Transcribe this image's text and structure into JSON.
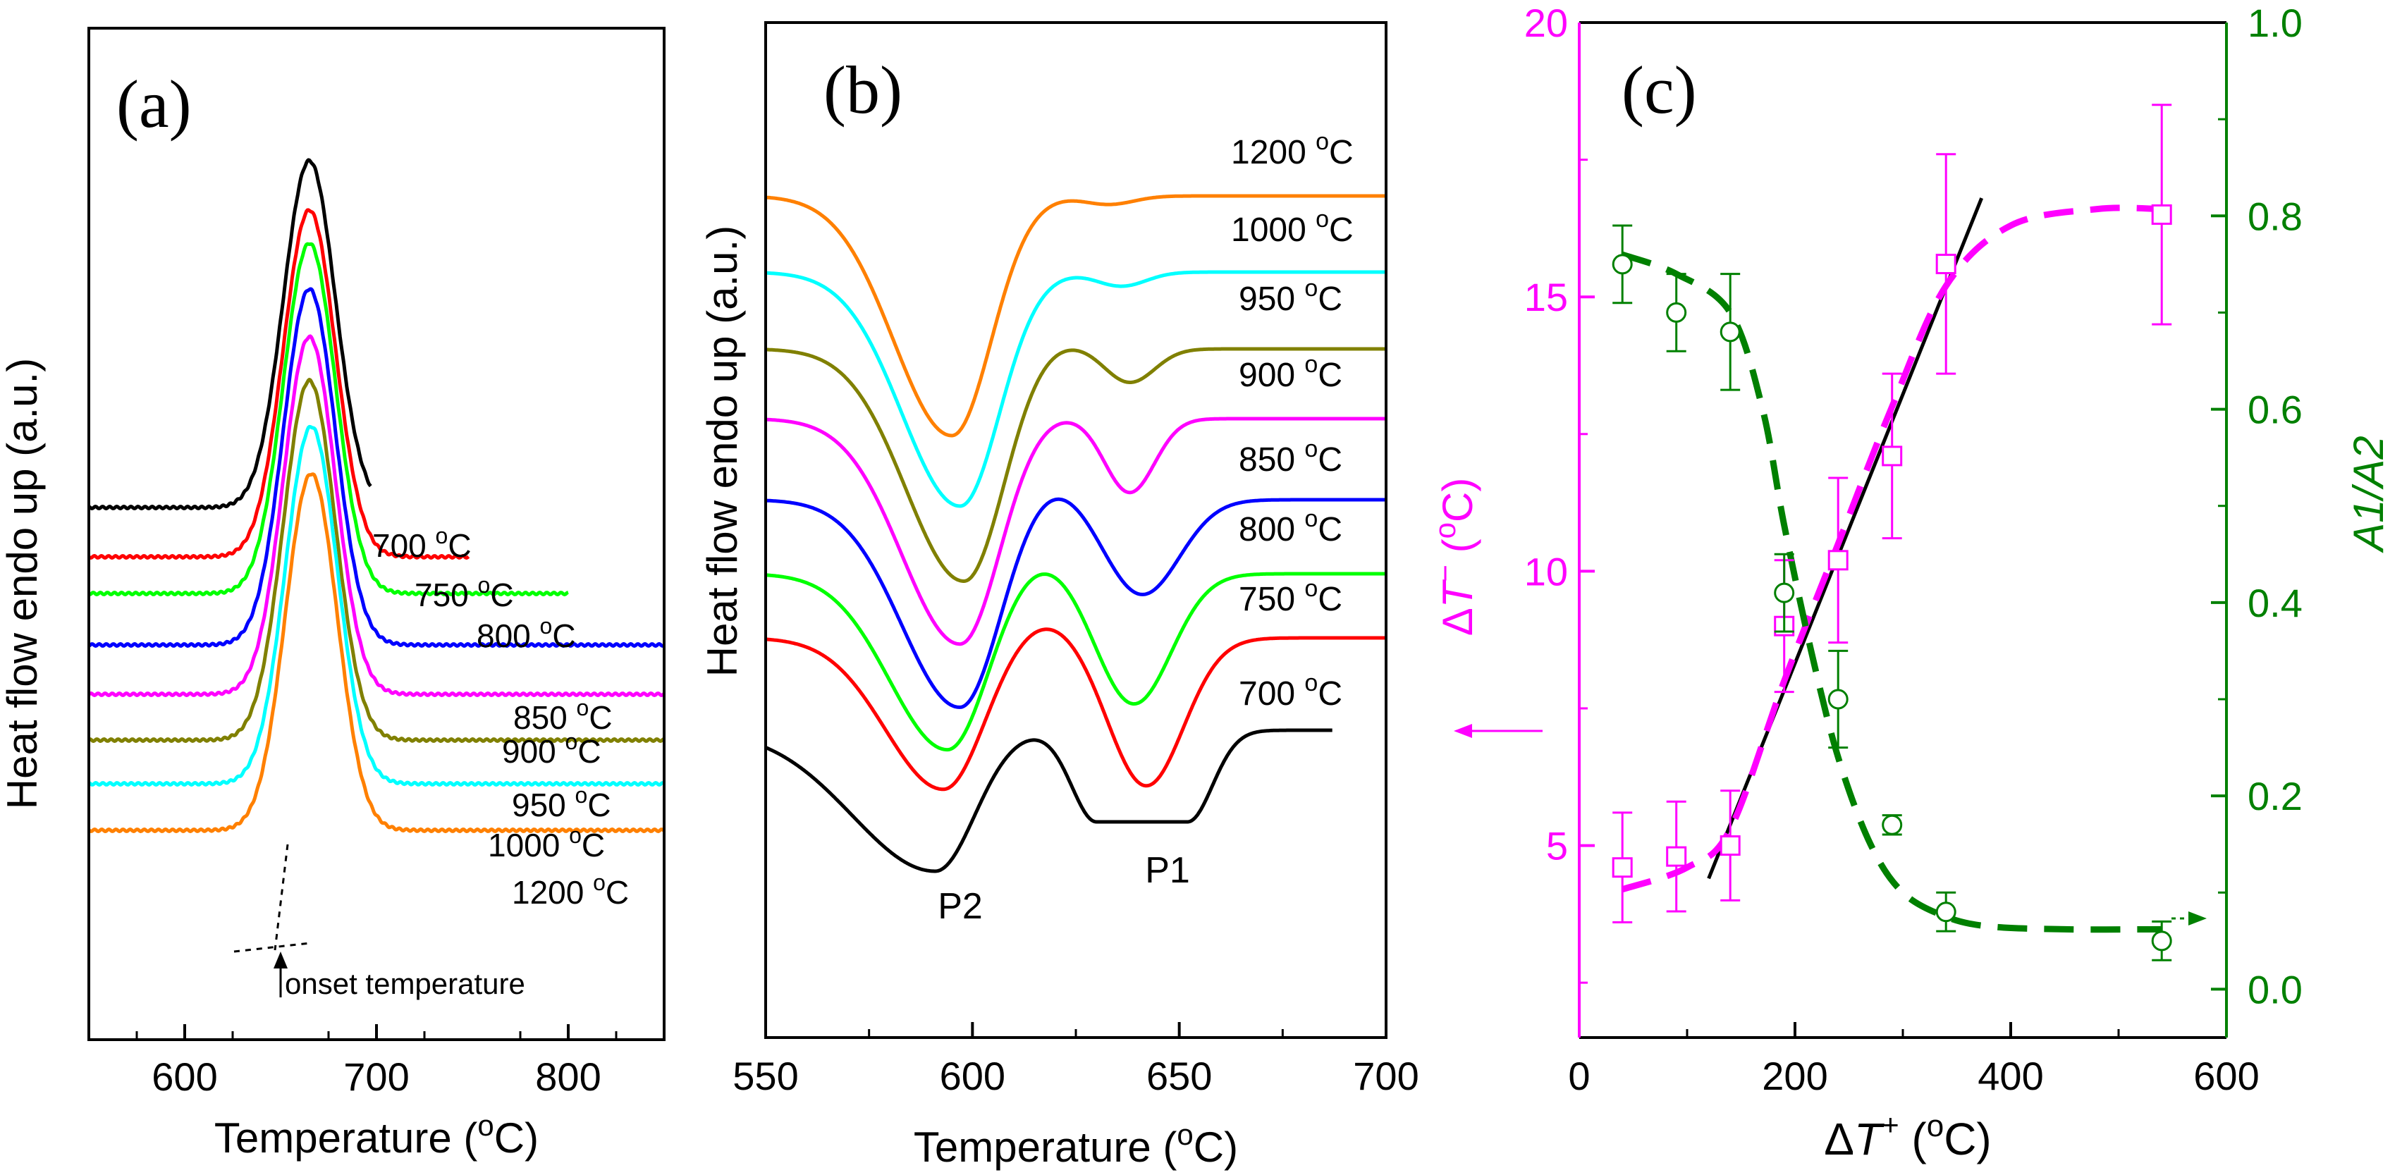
{
  "chart_data": [
    {
      "panel": "a",
      "panel_label": "(a)",
      "type": "line",
      "xlabel": "Temperature (°C)",
      "ylabel": "Heat flow endo up (a.u.)",
      "xlim": [
        550,
        850
      ],
      "xticks": [
        "600",
        "700",
        "800"
      ],
      "yticks_visible": false,
      "annotation": "onset temperature",
      "series": [
        {
          "name": "700 °C",
          "color": "#000000",
          "peak": 665,
          "x_end": 697
        },
        {
          "name": "750 °C",
          "color": "#ff0000",
          "peak": 665,
          "x_end": 748
        },
        {
          "name": "800 °C",
          "color": "#00ff00",
          "peak": 665,
          "x_end": 800
        },
        {
          "name": "850 °C",
          "color": "#0000ff",
          "peak": 665,
          "x_end": 850
        },
        {
          "name": "900 °C",
          "color": "#ff00ff",
          "peak": 665,
          "x_end": 850
        },
        {
          "name": "950 °C",
          "color": "#808000",
          "peak": 665,
          "x_end": 850
        },
        {
          "name": "1000 °C",
          "color": "#00ffff",
          "peak": 666,
          "x_end": 850
        },
        {
          "name": "1200 °C",
          "color": "#ff8000",
          "peak": 666,
          "x_end": 850
        }
      ]
    },
    {
      "panel": "b",
      "panel_label": "(b)",
      "type": "line",
      "xlabel": "Temperature (°C)",
      "ylabel": "Heat flow endo up (a.u.)",
      "xlim": [
        550,
        700
      ],
      "xticks": [
        "550",
        "600",
        "650",
        "700"
      ],
      "yticks_visible": false,
      "peak_labels": [
        "P2",
        "P1"
      ],
      "series": [
        {
          "name": "1200 °C",
          "color": "#ff8000",
          "p2_temp": 595,
          "p1_temp": 633,
          "x_end": 700
        },
        {
          "name": "1000 °C",
          "color": "#00ffff",
          "p2_temp": 597,
          "p1_temp": 636,
          "x_end": 700
        },
        {
          "name": "950 °C",
          "color": "#808000",
          "p2_temp": 598,
          "p1_temp": 638,
          "x_end": 700
        },
        {
          "name": "900 °C",
          "color": "#ff00ff",
          "p2_temp": 597,
          "p1_temp": 638,
          "x_end": 700
        },
        {
          "name": "850 °C",
          "color": "#0000ff",
          "p2_temp": 597,
          "p1_temp": 641,
          "x_end": 700
        },
        {
          "name": "800 °C",
          "color": "#00ff00",
          "p2_temp": 594,
          "p1_temp": 639,
          "x_end": 700
        },
        {
          "name": "750 °C",
          "color": "#ff0000",
          "p2_temp": 593,
          "p1_temp": 642,
          "x_end": 700
        },
        {
          "name": "700 °C",
          "color": "#000000",
          "p2_temp": 591,
          "p1_temp": 637,
          "x_end": 687
        }
      ]
    },
    {
      "panel": "c",
      "panel_label": "(c)",
      "type": "scatter",
      "xlabel": "ΔT+ (°C)",
      "xlim": [
        0,
        600
      ],
      "xticks": [
        "0",
        "200",
        "400",
        "600"
      ],
      "ylabel_left": "ΔT− (°C)",
      "ylim_left": [
        1.5,
        20
      ],
      "yticks_left": [
        "5",
        "10",
        "15",
        "20"
      ],
      "ylabel_right": "A1/A2",
      "ylim_right": [
        -0.05,
        1.0
      ],
      "yticks_right": [
        "0.0",
        "0.2",
        "0.4",
        "0.6",
        "0.8",
        "1.0"
      ],
      "left_color": "#ff00ff",
      "right_color": "#008000",
      "series": [
        {
          "name": "ΔT−",
          "axis": "left",
          "marker": "square",
          "color": "#ff00ff",
          "x": [
            40,
            90,
            140,
            190,
            240,
            290,
            340,
            540
          ],
          "y": [
            4.6,
            4.8,
            5.0,
            9.0,
            10.2,
            12.1,
            15.6,
            16.5
          ],
          "err": [
            1.0,
            1.0,
            1.0,
            1.2,
            1.5,
            1.5,
            2.0,
            2.0
          ]
        },
        {
          "name": "A1/A2",
          "axis": "right",
          "marker": "circle",
          "color": "#008000",
          "x": [
            40,
            90,
            140,
            190,
            240,
            290,
            340,
            540
          ],
          "y": [
            0.75,
            0.7,
            0.68,
            0.41,
            0.3,
            0.17,
            0.08,
            0.05
          ],
          "err": [
            0.04,
            0.04,
            0.06,
            0.04,
            0.05,
            0.01,
            0.02,
            0.02
          ]
        },
        {
          "name": "linear fit",
          "axis": "left",
          "style": "solid",
          "color": "#000000",
          "x": [
            120,
            373
          ],
          "y": [
            4.4,
            16.8
          ]
        },
        {
          "name": "ΔT− trend",
          "axis": "left",
          "style": "dashed",
          "color": "#ff00ff",
          "x": [
            40,
            100,
            140,
            190,
            240,
            290,
            340,
            400,
            480,
            540
          ],
          "y": [
            4.2,
            4.6,
            5.3,
            8.0,
            10.5,
            13.0,
            15.2,
            16.3,
            16.6,
            16.6
          ]
        },
        {
          "name": "A1/A2 trend",
          "axis": "right",
          "style": "dashed",
          "color": "#008000",
          "x": [
            40,
            90,
            140,
            170,
            190,
            215,
            240,
            270,
            300,
            340,
            380,
            450,
            540
          ],
          "y": [
            0.76,
            0.74,
            0.7,
            0.6,
            0.48,
            0.35,
            0.24,
            0.15,
            0.1,
            0.075,
            0.065,
            0.062,
            0.062
          ]
        }
      ]
    }
  ]
}
